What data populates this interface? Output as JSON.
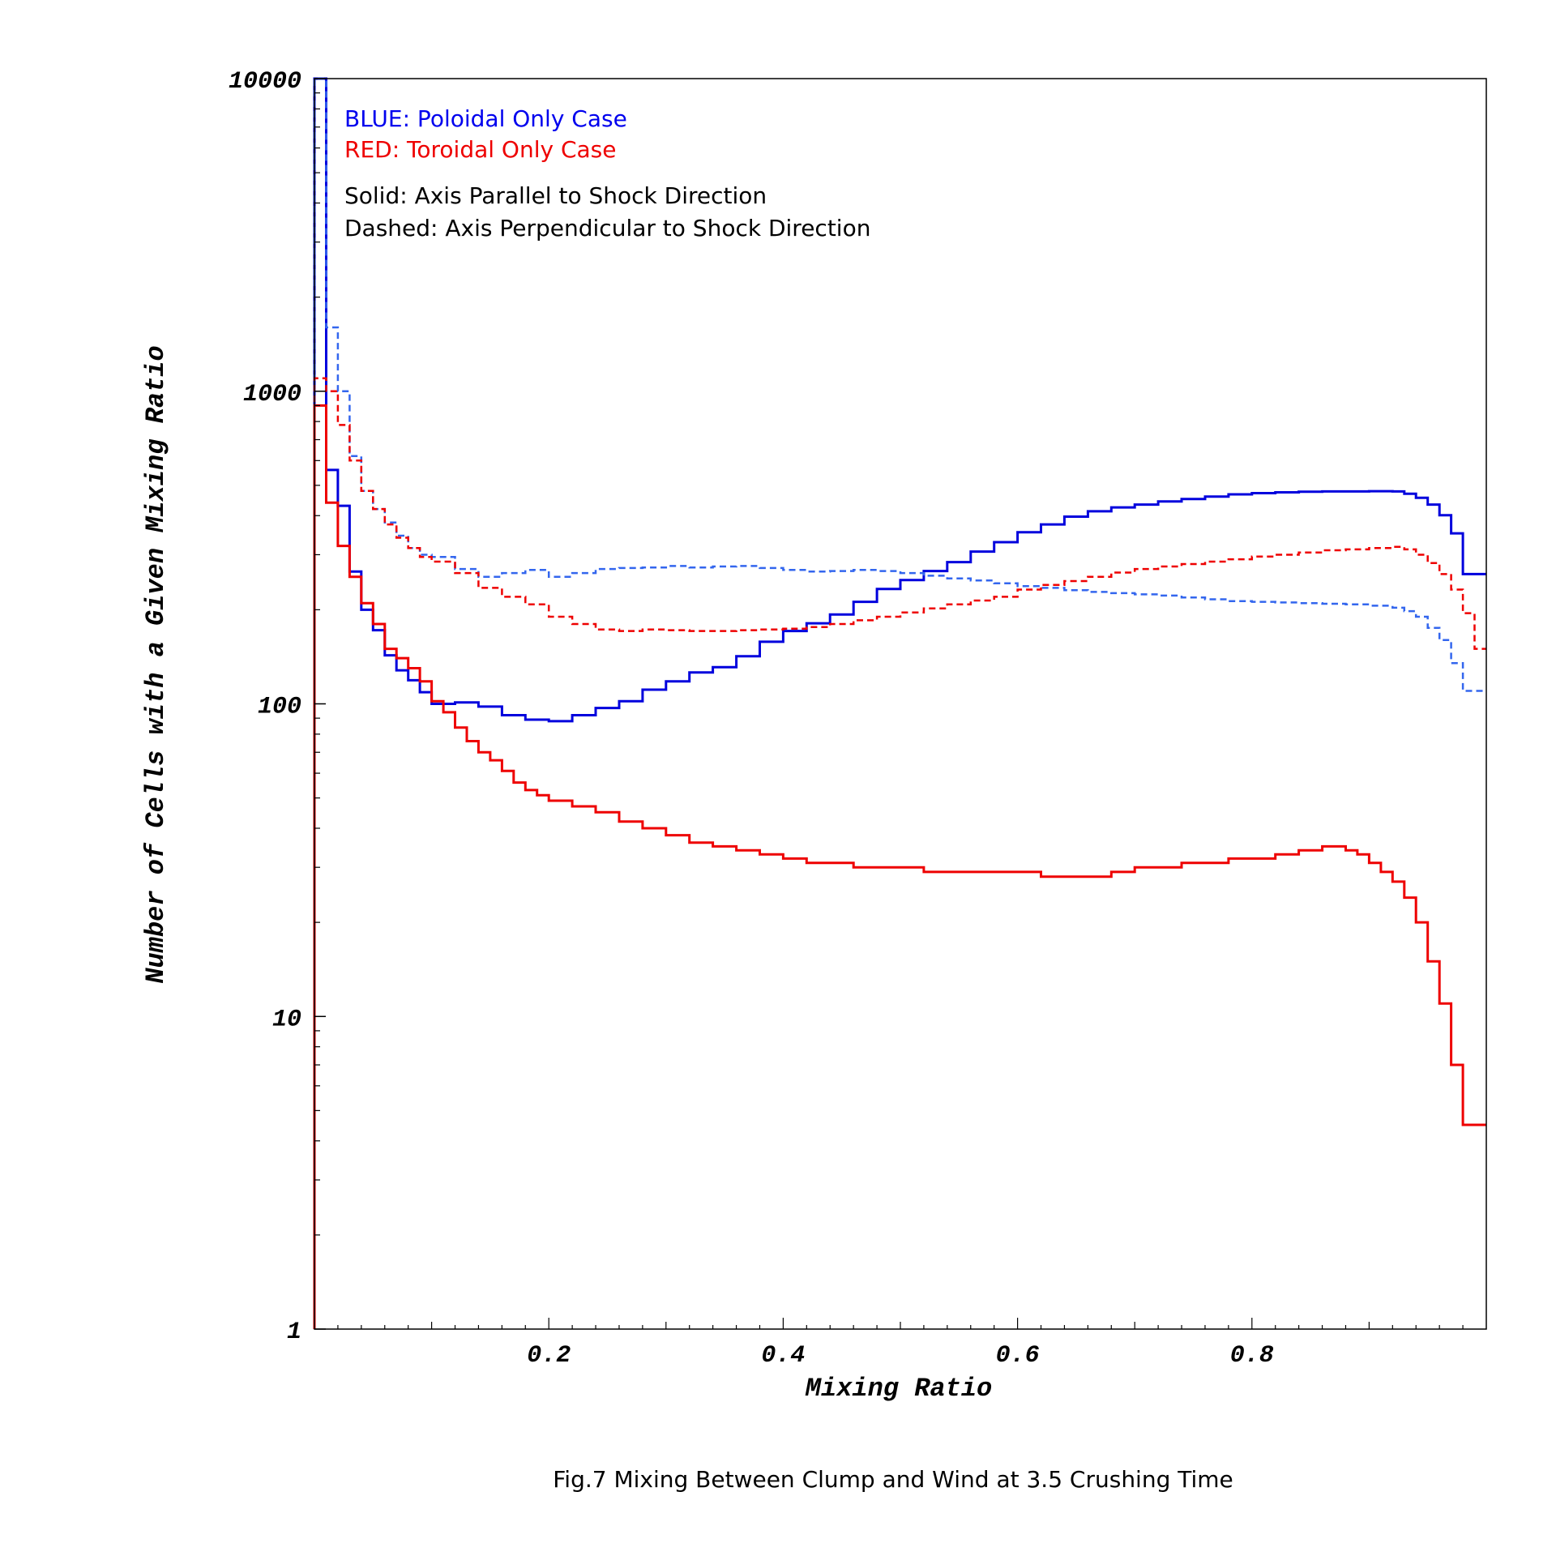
{
  "chart_data": {
    "type": "line",
    "step": true,
    "xlabel": "Mixing Ratio",
    "ylabel": "Number of Cells with a Given Mixing Ratio",
    "xlim": [
      0,
      1
    ],
    "ylim": [
      1,
      10000
    ],
    "yscale": "log",
    "xticks": [
      {
        "value": 0.2,
        "label": "0.2"
      },
      {
        "value": 0.4,
        "label": "0.4"
      },
      {
        "value": 0.6,
        "label": "0.6"
      },
      {
        "value": 0.8,
        "label": "0.8"
      }
    ],
    "yticks": [
      {
        "value": 1,
        "label": "1"
      },
      {
        "value": 10,
        "label": "10"
      },
      {
        "value": 100,
        "label": "100"
      },
      {
        "value": 1000,
        "label": "1000"
      },
      {
        "value": 10000,
        "label": "10000"
      }
    ],
    "legend_lines": [
      {
        "text": "BLUE: Poloidal Only Case",
        "color": "#0000ee"
      },
      {
        "text": "RED: Toroidal Only Case",
        "color": "#ee0000"
      },
      {
        "text": "Solid: Axis Parallel to Shock Direction",
        "color": "#000000"
      },
      {
        "text": "Dashed: Axis Perpendicular to Shock Direction",
        "color": "#000000"
      }
    ],
    "legend_position": "top-left",
    "series": [
      {
        "color": "#0000dd",
        "style": "solid",
        "bin_width": 0.01,
        "x": [
          0.0,
          0.01,
          0.02,
          0.03,
          0.04,
          0.05,
          0.06,
          0.07,
          0.08,
          0.09,
          0.1,
          0.12,
          0.14,
          0.16,
          0.18,
          0.2,
          0.22,
          0.24,
          0.26,
          0.28,
          0.3,
          0.32,
          0.34,
          0.36,
          0.38,
          0.4,
          0.42,
          0.44,
          0.46,
          0.48,
          0.5,
          0.52,
          0.54,
          0.56,
          0.58,
          0.6,
          0.62,
          0.64,
          0.66,
          0.68,
          0.7,
          0.72,
          0.74,
          0.76,
          0.78,
          0.8,
          0.82,
          0.84,
          0.86,
          0.88,
          0.9,
          0.92,
          0.93,
          0.94,
          0.95,
          0.96,
          0.97,
          0.98,
          0.99
        ],
        "y": [
          10000,
          560,
          430,
          265,
          200,
          172,
          143,
          128,
          119,
          109,
          100,
          101,
          98,
          92,
          89,
          88,
          92,
          97,
          102,
          111,
          118,
          126,
          131,
          142,
          158,
          171,
          181,
          193,
          212,
          233,
          249,
          266,
          284,
          307,
          329,
          354,
          375,
          397,
          413,
          425,
          434,
          444,
          452,
          460,
          468,
          472,
          475,
          477,
          478,
          478,
          479,
          478,
          470,
          456,
          434,
          401,
          351,
          260,
          260
        ]
      },
      {
        "color": "#3366ee",
        "style": "dashed",
        "bin_width": 0.01,
        "x": [
          0.0,
          0.01,
          0.02,
          0.03,
          0.04,
          0.05,
          0.06,
          0.07,
          0.08,
          0.09,
          0.1,
          0.12,
          0.14,
          0.16,
          0.18,
          0.2,
          0.22,
          0.24,
          0.26,
          0.28,
          0.3,
          0.32,
          0.34,
          0.36,
          0.38,
          0.4,
          0.42,
          0.44,
          0.46,
          0.48,
          0.5,
          0.52,
          0.54,
          0.56,
          0.58,
          0.6,
          0.62,
          0.64,
          0.66,
          0.68,
          0.7,
          0.72,
          0.74,
          0.76,
          0.78,
          0.8,
          0.82,
          0.84,
          0.86,
          0.88,
          0.9,
          0.92,
          0.93,
          0.94,
          0.95,
          0.96,
          0.97,
          0.98,
          0.99
        ],
        "y": [
          10000,
          1600,
          1000,
          620,
          480,
          420,
          380,
          345,
          315,
          300,
          295,
          270,
          255,
          262,
          268,
          255,
          262,
          270,
          272,
          273,
          276,
          273,
          275,
          276,
          272,
          268,
          265,
          266,
          268,
          266,
          262,
          257,
          252,
          248,
          243,
          238,
          235,
          231,
          228,
          226,
          224,
          222,
          219,
          216,
          213,
          212,
          211,
          210,
          209,
          208,
          206,
          203,
          198,
          190,
          175,
          160,
          135,
          110,
          110
        ]
      },
      {
        "color": "#ee0000",
        "style": "solid",
        "bin_width": 0.01,
        "x": [
          0.0,
          0.01,
          0.02,
          0.03,
          0.04,
          0.05,
          0.06,
          0.07,
          0.08,
          0.09,
          0.1,
          0.11,
          0.12,
          0.13,
          0.14,
          0.15,
          0.16,
          0.17,
          0.18,
          0.19,
          0.2,
          0.22,
          0.24,
          0.26,
          0.28,
          0.3,
          0.32,
          0.34,
          0.36,
          0.38,
          0.4,
          0.42,
          0.44,
          0.46,
          0.48,
          0.5,
          0.52,
          0.54,
          0.56,
          0.58,
          0.6,
          0.62,
          0.64,
          0.66,
          0.68,
          0.7,
          0.72,
          0.74,
          0.76,
          0.78,
          0.8,
          0.82,
          0.84,
          0.86,
          0.88,
          0.89,
          0.9,
          0.91,
          0.92,
          0.93,
          0.94,
          0.95,
          0.96,
          0.97,
          0.98,
          0.99
        ],
        "y": [
          900,
          440,
          320,
          255,
          210,
          180,
          150,
          140,
          130,
          118,
          102,
          94,
          84,
          76,
          70,
          66,
          61,
          56,
          53,
          51,
          49,
          47,
          45,
          42,
          40,
          38,
          36,
          35,
          34,
          33,
          32,
          31,
          31,
          30,
          30,
          30,
          29,
          29,
          29,
          29,
          29,
          28,
          28,
          28,
          29,
          30,
          30,
          31,
          31,
          32,
          32,
          33,
          34,
          35,
          34,
          33,
          31,
          29,
          27,
          24,
          20,
          15,
          11,
          7,
          4.5,
          4.5
        ]
      },
      {
        "color": "#ee0000",
        "style": "dashed",
        "bin_width": 0.01,
        "x": [
          0.0,
          0.01,
          0.02,
          0.03,
          0.04,
          0.05,
          0.06,
          0.07,
          0.08,
          0.09,
          0.1,
          0.12,
          0.14,
          0.16,
          0.18,
          0.2,
          0.22,
          0.24,
          0.26,
          0.28,
          0.3,
          0.32,
          0.34,
          0.36,
          0.38,
          0.4,
          0.42,
          0.44,
          0.46,
          0.48,
          0.5,
          0.52,
          0.54,
          0.56,
          0.58,
          0.6,
          0.62,
          0.64,
          0.66,
          0.68,
          0.7,
          0.72,
          0.74,
          0.76,
          0.78,
          0.8,
          0.82,
          0.84,
          0.86,
          0.88,
          0.9,
          0.92,
          0.93,
          0.94,
          0.95,
          0.96,
          0.97,
          0.98,
          0.99
        ],
        "y": [
          1100,
          1000,
          780,
          600,
          480,
          420,
          375,
          340,
          315,
          295,
          285,
          262,
          235,
          220,
          208,
          190,
          180,
          173,
          171,
          173,
          172,
          171,
          171,
          172,
          173,
          174,
          176,
          180,
          185,
          190,
          196,
          202,
          208,
          214,
          220,
          232,
          240,
          247,
          255,
          263,
          270,
          275,
          280,
          285,
          290,
          296,
          300,
          305,
          310,
          312,
          315,
          318,
          312,
          300,
          282,
          260,
          232,
          195,
          150
        ]
      }
    ]
  },
  "caption": "Fig.7 Mixing Between Clump and Wind at 3.5 Crushing Time"
}
